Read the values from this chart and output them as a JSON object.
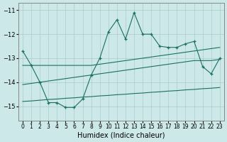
{
  "xlabel": "Humidex (Indice chaleur)",
  "bg_color": "#cce8e8",
  "grid_color": "#aacccc",
  "line_color": "#1a7060",
  "xlim": [
    -0.5,
    23.5
  ],
  "ylim": [
    -15.6,
    -10.7
  ],
  "yticks": [
    -11,
    -12,
    -13,
    -14,
    -15
  ],
  "xticks": [
    0,
    1,
    2,
    3,
    4,
    5,
    6,
    7,
    8,
    9,
    10,
    11,
    12,
    13,
    14,
    15,
    16,
    17,
    18,
    19,
    20,
    21,
    22,
    23
  ],
  "line_upper_x": [
    0,
    1,
    2,
    3,
    4,
    5,
    6,
    7,
    8,
    9,
    10,
    11,
    12,
    13,
    14,
    15,
    16,
    17,
    18,
    19,
    20,
    21,
    22,
    23
  ],
  "line_upper_y": [
    -13.3,
    -13.3,
    -13.3,
    -13.3,
    -13.3,
    -13.3,
    -13.3,
    -13.3,
    -13.3,
    -13.25,
    -13.2,
    -13.15,
    -13.1,
    -13.05,
    -13.0,
    -12.95,
    -12.9,
    -12.85,
    -12.8,
    -12.75,
    -12.7,
    -12.65,
    -12.6,
    -12.55
  ],
  "line_lower_x": [
    0,
    1,
    2,
    3,
    4,
    5,
    6,
    7,
    8,
    9,
    10,
    11,
    12,
    13,
    14,
    15,
    16,
    17,
    18,
    19,
    20,
    21,
    22,
    23
  ],
  "line_lower_y": [
    -14.8,
    -14.78,
    -14.75,
    -14.72,
    -14.7,
    -14.67,
    -14.65,
    -14.62,
    -14.6,
    -14.57,
    -14.55,
    -14.52,
    -14.5,
    -14.47,
    -14.45,
    -14.42,
    -14.4,
    -14.37,
    -14.35,
    -14.32,
    -14.3,
    -14.27,
    -14.25,
    -14.22
  ],
  "line_mid_x": [
    0,
    1,
    2,
    3,
    4,
    5,
    6,
    7,
    8,
    9,
    10,
    11,
    12,
    13,
    14,
    15,
    16,
    17,
    18,
    19,
    20,
    21,
    22,
    23
  ],
  "line_mid_y": [
    -14.1,
    -14.05,
    -14.0,
    -13.95,
    -13.9,
    -13.85,
    -13.8,
    -13.75,
    -13.7,
    -13.65,
    -13.6,
    -13.55,
    -13.5,
    -13.45,
    -13.4,
    -13.35,
    -13.3,
    -13.25,
    -13.2,
    -13.15,
    -13.1,
    -13.1,
    -13.1,
    -13.05
  ],
  "line_jagged_x": [
    0,
    1,
    2,
    3,
    4,
    5,
    6,
    7,
    8,
    9,
    10,
    11,
    12,
    13,
    14,
    15,
    16,
    17,
    18,
    19,
    20,
    21,
    22,
    23
  ],
  "line_jagged_y": [
    -12.7,
    -13.3,
    -14.0,
    -14.85,
    -14.85,
    -15.05,
    -15.05,
    -14.7,
    -13.7,
    -13.0,
    -11.9,
    -11.4,
    -12.2,
    -11.1,
    -12.0,
    -12.0,
    -12.5,
    -12.55,
    -12.55,
    -12.4,
    -12.3,
    -13.35,
    -13.65,
    -13.0
  ]
}
